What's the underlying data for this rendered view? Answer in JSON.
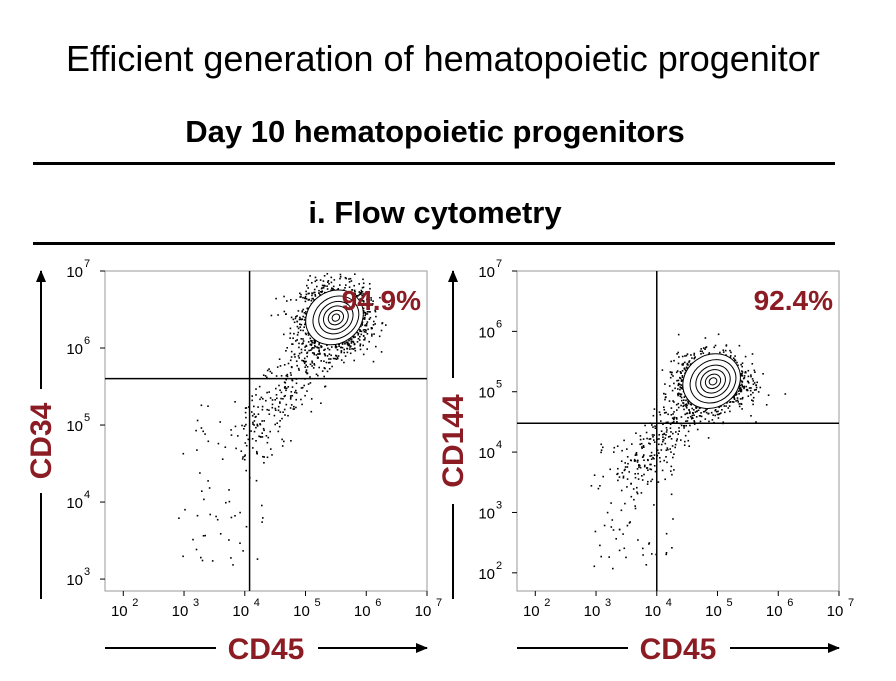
{
  "slide_title": "Efficient generation of hematopoietic progenitor",
  "section_title": "Day 10 hematopoietic progenitors",
  "sub_title": "i. Flow cytometry",
  "chart_data": [
    {
      "type": "scatter",
      "title": "",
      "xlabel": "CD45",
      "ylabel": "CD34",
      "xscale": "log",
      "yscale": "log",
      "xlim": [
        50,
        10000000
      ],
      "ylim": [
        700,
        10000000
      ],
      "x_ticks": [
        100,
        1000,
        10000,
        100000,
        1000000,
        10000000
      ],
      "y_ticks": [
        1000,
        10000,
        100000,
        1000000,
        10000000
      ],
      "gate": {
        "x": 12000,
        "y": 400000
      },
      "annotation": "94.9%",
      "population_center": {
        "x": 300000,
        "y": 2500000
      }
    },
    {
      "type": "scatter",
      "title": "",
      "xlabel": "CD45",
      "ylabel": "CD144",
      "xscale": "log",
      "yscale": "log",
      "xlim": [
        50,
        10000000
      ],
      "ylim": [
        50,
        10000000
      ],
      "x_ticks": [
        100,
        1000,
        10000,
        100000,
        1000000,
        10000000
      ],
      "y_ticks": [
        100,
        1000,
        10000,
        100000,
        1000000,
        10000000
      ],
      "gate": {
        "x": 10000,
        "y": 30000
      },
      "annotation": "92.4%",
      "population_center": {
        "x": 80000,
        "y": 150000
      }
    }
  ]
}
